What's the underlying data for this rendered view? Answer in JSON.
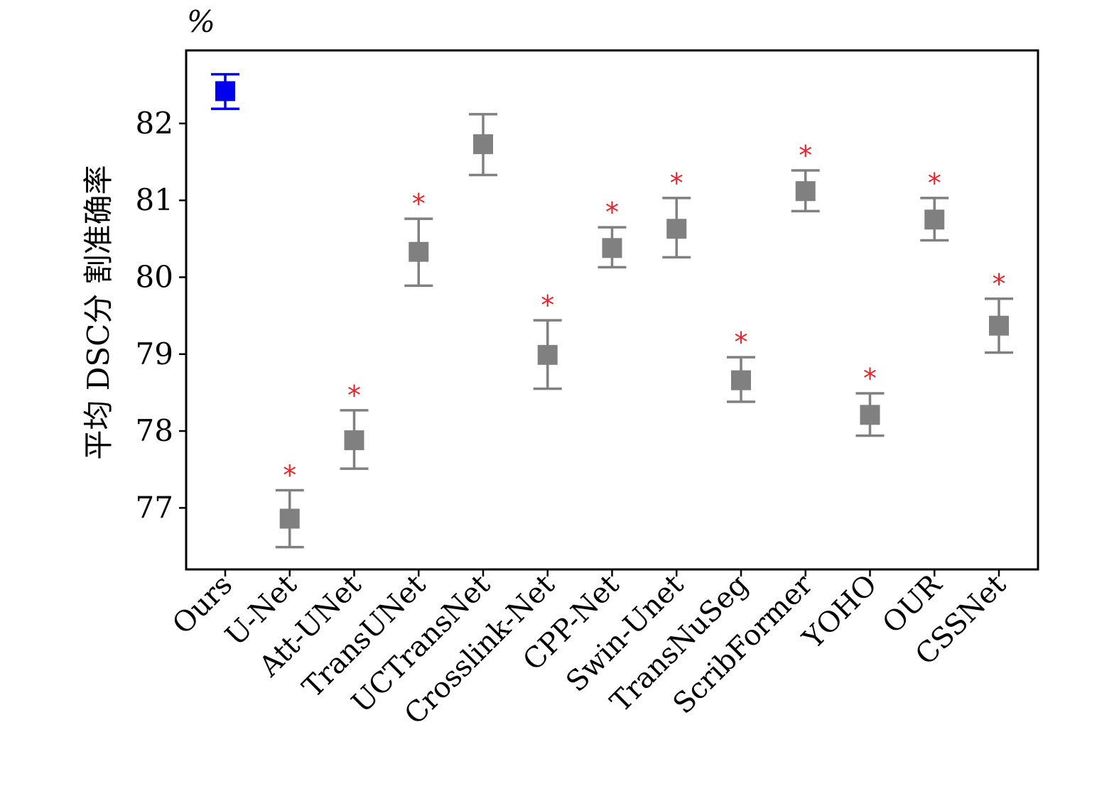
{
  "chart_data": {
    "type": "scatter",
    "unit_label": "%",
    "ylabel": "平均 DSC分 割准确率",
    "xlabel": "",
    "ylim": [
      76.2,
      82.95
    ],
    "yticks": [
      77,
      78,
      79,
      80,
      81,
      82
    ],
    "grid": false,
    "legend": "none",
    "significance_marker": "*",
    "colors": {
      "highlight": "#0000ee",
      "default": "#808080",
      "significance": "#e8232a",
      "axes": "#000000"
    },
    "points": [
      {
        "category": "Ours",
        "mean": 82.42,
        "lower": 82.19,
        "upper": 82.64,
        "significant": false,
        "highlight": true
      },
      {
        "category": "U-Net",
        "mean": 76.86,
        "lower": 76.49,
        "upper": 77.23,
        "significant": true,
        "highlight": false
      },
      {
        "category": "Att-UNet",
        "mean": 77.88,
        "lower": 77.51,
        "upper": 78.27,
        "significant": true,
        "highlight": false
      },
      {
        "category": "TransUNet",
        "mean": 80.33,
        "lower": 79.89,
        "upper": 80.76,
        "significant": true,
        "highlight": false
      },
      {
        "category": "UCTransNet",
        "mean": 81.73,
        "lower": 81.33,
        "upper": 82.12,
        "significant": false,
        "highlight": false
      },
      {
        "category": "Crosslink-Net",
        "mean": 78.99,
        "lower": 78.55,
        "upper": 79.44,
        "significant": true,
        "highlight": false
      },
      {
        "category": "CPP-Net",
        "mean": 80.38,
        "lower": 80.13,
        "upper": 80.65,
        "significant": true,
        "highlight": false
      },
      {
        "category": "Swin-Unet",
        "mean": 80.63,
        "lower": 80.26,
        "upper": 81.03,
        "significant": true,
        "highlight": false
      },
      {
        "category": "TransNuSeg",
        "mean": 78.66,
        "lower": 78.38,
        "upper": 78.96,
        "significant": true,
        "highlight": false
      },
      {
        "category": "ScribFormer",
        "mean": 81.12,
        "lower": 80.86,
        "upper": 81.39,
        "significant": true,
        "highlight": false
      },
      {
        "category": "YOHO",
        "mean": 78.21,
        "lower": 77.94,
        "upper": 78.49,
        "significant": true,
        "highlight": false
      },
      {
        "category": "OUR",
        "mean": 80.75,
        "lower": 80.48,
        "upper": 81.03,
        "significant": true,
        "highlight": false
      },
      {
        "category": "CSSNet",
        "mean": 79.37,
        "lower": 79.02,
        "upper": 79.72,
        "significant": true,
        "highlight": false
      }
    ]
  }
}
